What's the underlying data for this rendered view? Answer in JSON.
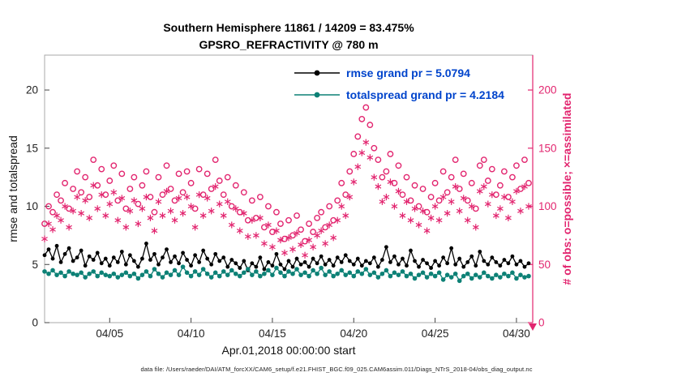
{
  "chart_data": {
    "type": "line+scatter",
    "title": "Southern Hemisphere 11861 / 14209 = 83.475%",
    "subtitle": "GPSRO_REFRACTIVITY @ 780 m",
    "xlabel": "Apr.01,2018 00:00:00 start",
    "ylabel": "rmse and totalspread",
    "y2label": "# of obs: o=possible; ×=assimilated",
    "caption": "data file: /Users/raeder/DAI/ATM_forcXX/CAM6_setup/f.e21.FHIST_BGC.f09_025.CAM6assim.011/Diags_NTrS_2018-04/obs_diag_output.nc",
    "xlim": [
      1,
      31
    ],
    "ylim": [
      0,
      23
    ],
    "y2lim": [
      0,
      230
    ],
    "yticks": [
      0,
      5,
      10,
      15,
      20
    ],
    "y2ticks": [
      0,
      50,
      100,
      150,
      200
    ],
    "xticks": [
      {
        "x": 5,
        "label": "04/05"
      },
      {
        "x": 10,
        "label": "04/10"
      },
      {
        "x": 15,
        "label": "04/15"
      },
      {
        "x": 20,
        "label": "04/20"
      },
      {
        "x": 25,
        "label": "04/25"
      },
      {
        "x": 30,
        "label": "04/30"
      }
    ],
    "colors": {
      "rmse": "#000000",
      "spread": "#0d8176",
      "obs": "#e2256f",
      "legend_text": "#0044cc",
      "box": "#a9a9a9",
      "tick_text": "#222222"
    },
    "x": [
      1,
      1.25,
      1.5,
      1.75,
      2,
      2.25,
      2.5,
      2.75,
      3,
      3.25,
      3.5,
      3.75,
      4,
      4.25,
      4.5,
      4.75,
      5,
      5.25,
      5.5,
      5.75,
      6,
      6.25,
      6.5,
      6.75,
      7,
      7.25,
      7.5,
      7.75,
      8,
      8.25,
      8.5,
      8.75,
      9,
      9.25,
      9.5,
      9.75,
      10,
      10.25,
      10.5,
      10.75,
      11,
      11.25,
      11.5,
      11.75,
      12,
      12.25,
      12.5,
      12.75,
      13,
      13.25,
      13.5,
      13.75,
      14,
      14.25,
      14.5,
      14.75,
      15,
      15.25,
      15.5,
      15.75,
      16,
      16.25,
      16.5,
      16.75,
      17,
      17.25,
      17.5,
      17.75,
      18,
      18.25,
      18.5,
      18.75,
      19,
      19.25,
      19.5,
      19.75,
      20,
      20.25,
      20.5,
      20.75,
      21,
      21.25,
      21.5,
      21.75,
      22,
      22.25,
      22.5,
      22.75,
      23,
      23.25,
      23.5,
      23.75,
      24,
      24.25,
      24.5,
      24.75,
      25,
      25.25,
      25.5,
      25.75,
      26,
      26.25,
      26.5,
      26.75,
      27,
      27.25,
      27.5,
      27.75,
      28,
      28.25,
      28.5,
      28.75,
      29,
      29.25,
      29.5,
      29.75,
      30,
      30.25,
      30.5,
      30.75
    ],
    "series": [
      {
        "name": "rmse grand pr = 5.0794",
        "color": "#000000",
        "axis": "y1",
        "values": [
          5.8,
          6.3,
          5.5,
          6.6,
          5.2,
          5.9,
          6.4,
          5.3,
          5.6,
          6.2,
          4.9,
          5.7,
          5.4,
          6.0,
          5.1,
          5.5,
          4.9,
          5.6,
          5.2,
          6.1,
          5.0,
          5.8,
          5.3,
          4.8,
          5.5,
          6.8,
          5.4,
          5.9,
          5.0,
          5.6,
          6.3,
          5.2,
          5.7,
          5.1,
          6.0,
          5.4,
          4.9,
          5.8,
          5.2,
          6.2,
          5.5,
          5.0,
          5.9,
          5.3,
          5.6,
          4.8,
          5.4,
          5.1,
          4.7,
          5.3,
          4.5,
          5.1,
          4.8,
          5.6,
          4.6,
          5.2,
          4.9,
          5.9,
          5.0,
          4.6,
          5.3,
          4.8,
          5.5,
          5.0,
          5.2,
          4.8,
          5.5,
          5.1,
          5.7,
          5.0,
          5.4,
          4.9,
          5.6,
          5.2,
          5.8,
          5.3,
          5.0,
          5.5,
          4.9,
          5.3,
          5.1,
          5.6,
          4.8,
          5.4,
          6.5,
          5.2,
          5.7,
          5.0,
          5.5,
          4.9,
          6.2,
          5.3,
          4.8,
          5.4,
          5.1,
          4.7,
          5.3,
          4.9,
          5.6,
          5.1,
          6.4,
          5.0,
          5.5,
          4.8,
          5.2,
          5.7,
          4.9,
          6.1,
          5.3,
          5.0,
          5.6,
          5.2,
          4.9,
          5.4,
          5.1,
          5.7,
          5.0,
          5.3,
          4.8,
          5.1
        ]
      },
      {
        "name": "totalspread grand pr = 4.2184",
        "color": "#0d8176",
        "axis": "y1",
        "values": [
          4.4,
          4.2,
          4.5,
          4.1,
          4.3,
          4.0,
          4.4,
          4.2,
          4.1,
          4.3,
          3.9,
          4.2,
          4.4,
          4.0,
          4.3,
          4.1,
          4.0,
          4.2,
          3.9,
          4.1,
          4.3,
          4.0,
          4.2,
          3.8,
          4.1,
          4.4,
          4.0,
          4.6,
          4.2,
          3.9,
          4.3,
          4.1,
          4.5,
          4.1,
          4.8,
          4.3,
          4.0,
          4.4,
          4.1,
          4.6,
          4.2,
          3.9,
          4.3,
          4.0,
          4.4,
          4.1,
          4.5,
          4.2,
          4.0,
          4.3,
          4.6,
          4.1,
          4.4,
          4.0,
          4.2,
          4.5,
          4.1,
          4.7,
          4.3,
          4.0,
          4.4,
          4.2,
          4.6,
          4.1,
          4.3,
          4.0,
          4.5,
          4.2,
          4.7,
          4.1,
          4.4,
          4.0,
          4.2,
          4.5,
          4.1,
          4.3,
          4.0,
          4.4,
          4.2,
          4.6,
          4.1,
          4.3,
          3.9,
          4.2,
          4.5,
          4.0,
          4.3,
          4.1,
          4.4,
          4.0,
          4.2,
          3.8,
          4.1,
          4.3,
          3.9,
          4.2,
          4.0,
          4.3,
          3.7,
          4.1,
          3.9,
          4.2,
          3.6,
          4.0,
          4.2,
          3.8,
          4.1,
          3.9,
          4.3,
          4.0,
          3.8,
          4.1,
          3.9,
          4.2,
          4.0,
          4.3,
          3.8,
          4.1,
          3.9,
          4.0
        ]
      }
    ],
    "scatter": [
      {
        "name": "possible",
        "marker": "circle",
        "color": "#e2256f",
        "axis": "y2",
        "values": [
          85,
          100,
          95,
          110,
          105,
          120,
          98,
          115,
          130,
          112,
          125,
          108,
          140,
          118,
          132,
          110,
          122,
          135,
          105,
          128,
          98,
          115,
          125,
          102,
          118,
          130,
          108,
          95,
          125,
          110,
          135,
          115,
          105,
          128,
          112,
          130,
          120,
          98,
          132,
          110,
          128,
          115,
          140,
          122,
          110,
          125,
          100,
          118,
          95,
          112,
          88,
          105,
          90,
          108,
          82,
          100,
          78,
          95,
          85,
          72,
          88,
          75,
          92,
          80,
          70,
          85,
          78,
          90,
          95,
          82,
          100,
          88,
          105,
          120,
          110,
          130,
          145,
          160,
          175,
          185,
          170,
          150,
          140,
          125,
          130,
          145,
          120,
          135,
          110,
          125,
          105,
          118,
          100,
          115,
          95,
          108,
          120,
          105,
          130,
          112,
          125,
          140,
          115,
          128,
          105,
          120,
          98,
          135,
          140,
          122,
          132,
          110,
          118,
          130,
          108,
          125,
          135,
          115,
          140,
          120
        ]
      },
      {
        "name": "assimilated",
        "marker": "asterisk",
        "color": "#e2256f",
        "axis": "y2",
        "values": [
          72,
          85,
          80,
          92,
          88,
          100,
          82,
          96,
          108,
          94,
          105,
          90,
          118,
          98,
          110,
          92,
          102,
          112,
          88,
          107,
          82,
          96,
          105,
          85,
          98,
          108,
          90,
          79,
          104,
          92,
          113,
          96,
          88,
          107,
          94,
          108,
          100,
          82,
          110,
          92,
          107,
          96,
          117,
          102,
          92,
          104,
          84,
          98,
          79,
          94,
          74,
          88,
          75,
          90,
          68,
          84,
          65,
          79,
          71,
          60,
          73,
          63,
          77,
          67,
          58,
          71,
          65,
          75,
          79,
          68,
          84,
          73,
          88,
          100,
          92,
          108,
          121,
          134,
          146,
          155,
          142,
          125,
          117,
          104,
          108,
          121,
          100,
          113,
          92,
          104,
          88,
          98,
          84,
          96,
          79,
          90,
          100,
          88,
          108,
          94,
          104,
          117,
          96,
          107,
          88,
          100,
          82,
          113,
          117,
          102,
          110,
          92,
          98,
          108,
          90,
          104,
          113,
          96,
          117,
          100
        ]
      }
    ],
    "zero_marker": {
      "x": 31,
      "y2": 0
    }
  }
}
